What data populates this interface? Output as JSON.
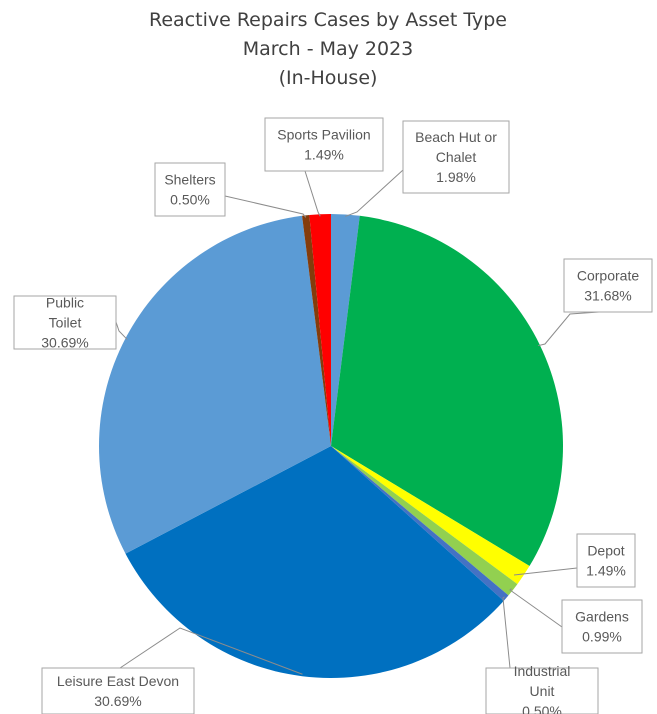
{
  "chart_data": {
    "type": "pie",
    "title": "Reactive Repairs Cases by Asset Type",
    "subtitle": "March - May 2023",
    "subtitle2": "(In-House)",
    "slices": [
      {
        "name": "Beach Hut or Chalet",
        "value": 1.98,
        "value_label": "1.98%",
        "color": "#5b9bd5"
      },
      {
        "name": "Corporate",
        "value": 31.68,
        "value_label": "31.68%",
        "color": "#00b050"
      },
      {
        "name": "Depot",
        "value": 1.49,
        "value_label": "1.49%",
        "color": "#ffff00"
      },
      {
        "name": "Gardens",
        "value": 0.99,
        "value_label": "0.99%",
        "color": "#92d050"
      },
      {
        "name": "Industrial Unit",
        "value": 0.5,
        "value_label": "0.50%",
        "color": "#4472c4"
      },
      {
        "name": "Leisure East Devon",
        "value": 30.69,
        "value_label": "30.69%",
        "color": "#0070c0"
      },
      {
        "name": "Public Toilet",
        "value": 30.69,
        "value_label": "30.69%",
        "color": "#5b9bd5"
      },
      {
        "name": "Shelters",
        "value": 0.5,
        "value_label": "0.50%",
        "color": "#843c0c"
      },
      {
        "name": "Sports Pavilion",
        "value": 1.49,
        "value_label": "1.49%",
        "color": "#ff0000"
      }
    ],
    "legend": "none"
  }
}
